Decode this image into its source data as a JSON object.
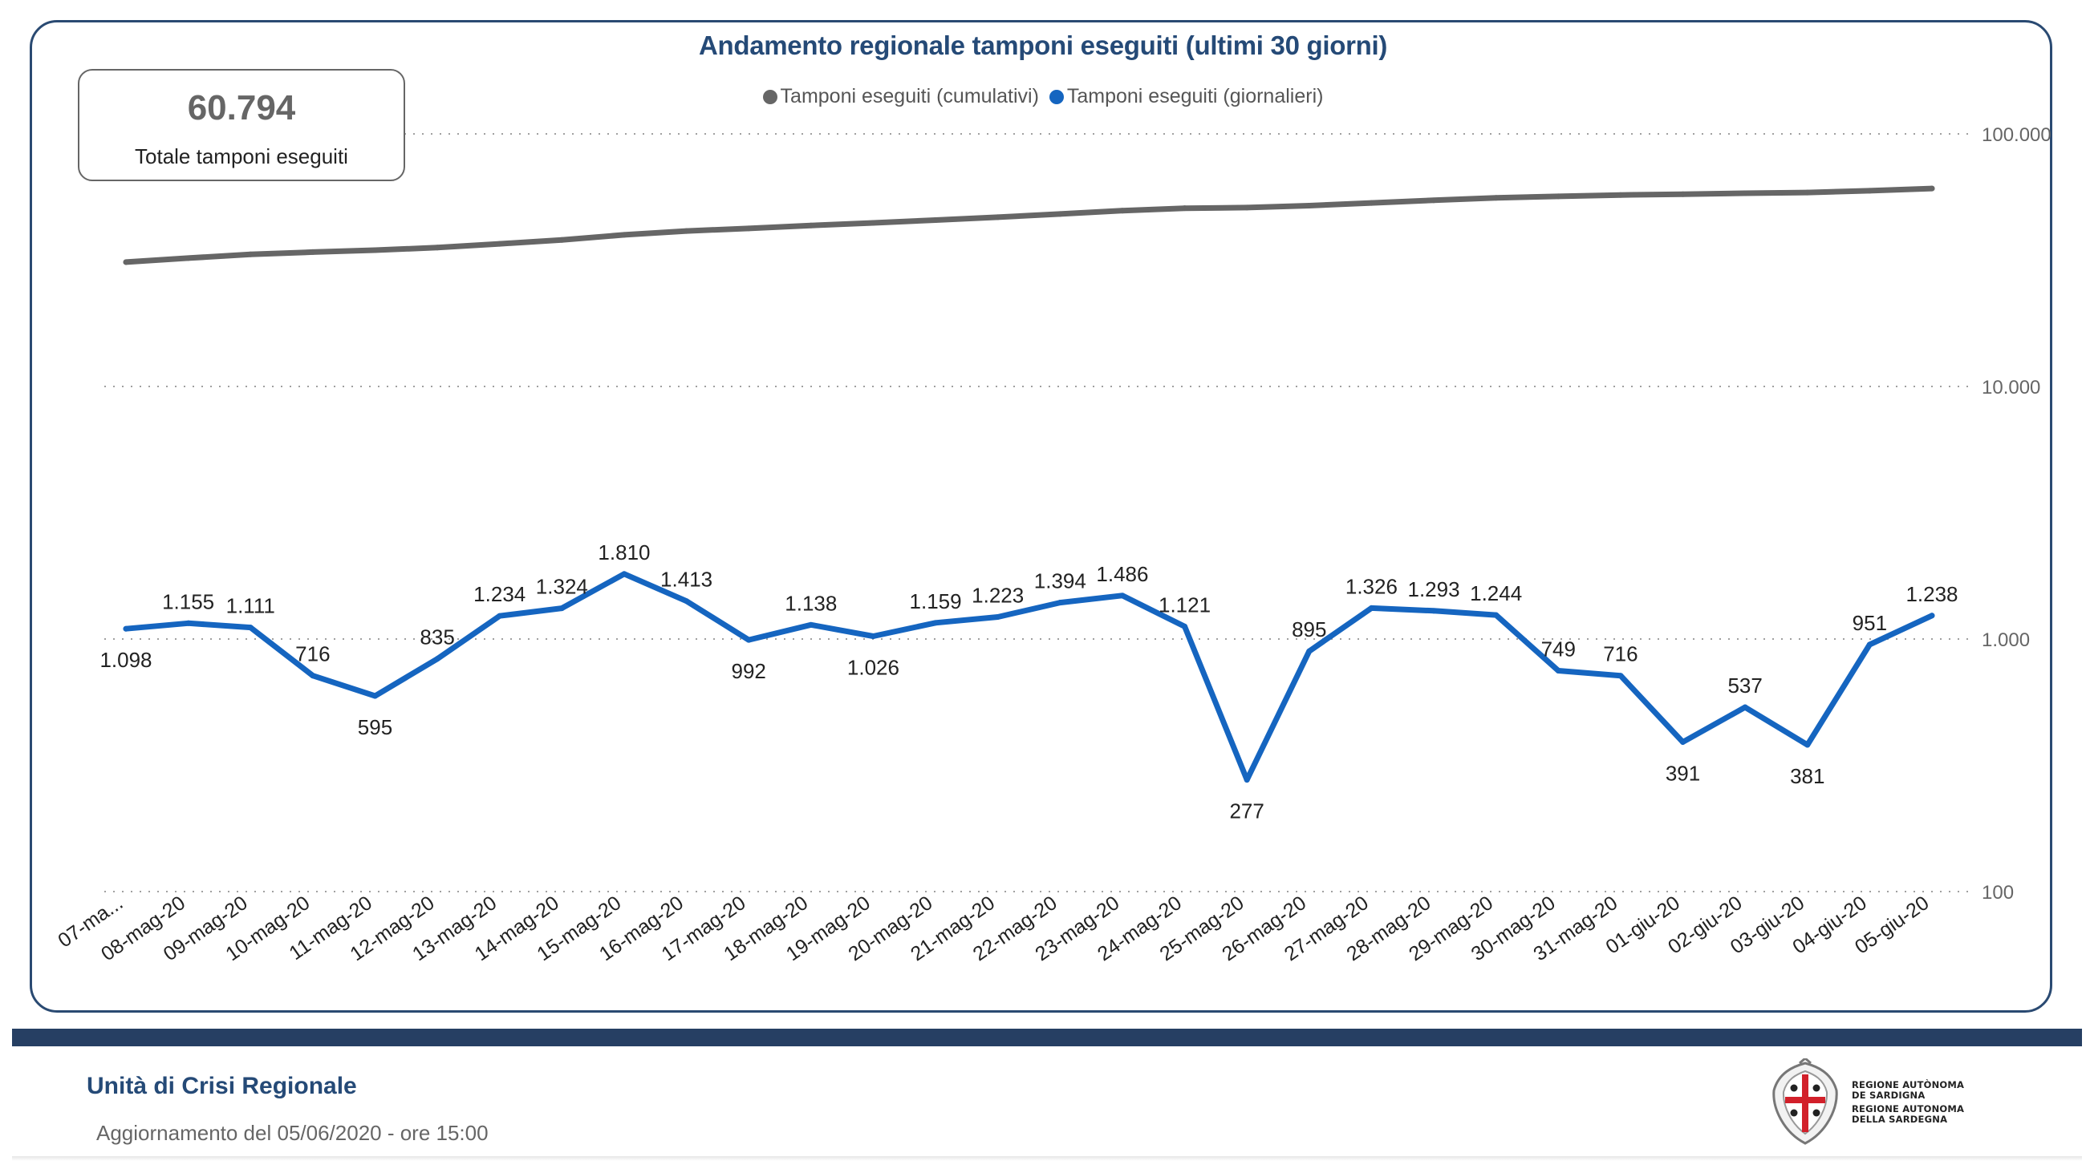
{
  "kpi": {
    "value": "60.794",
    "label": "Totale tamponi eseguiti"
  },
  "footer": {
    "title": "Unità di Crisi Regionale",
    "updated": "Aggiornamento del 05/06/2020 - ore 15:00",
    "logo_text": [
      "REGIONE AUTÒNOMA",
      "DE SARDIGNA",
      "REGIONE AUTONOMA",
      "DELLA SARDEGNA"
    ]
  },
  "colors": {
    "cumulative": "#666666",
    "daily": "#1565c0",
    "title": "#254a77",
    "border": "#2a4a72",
    "footer_bar": "#263f63",
    "flag_red": "#d2202a"
  },
  "chart_data": {
    "type": "line",
    "title": "Andamento regionale tamponi eseguiti (ultimi 30 giorni)",
    "xlabel": "",
    "ylabel": "",
    "yscale": "log",
    "ylim": [
      100,
      100000
    ],
    "yticks": [
      100,
      1000,
      10000,
      100000
    ],
    "ytick_labels": [
      "100",
      "1.000",
      "10.000",
      "100.000"
    ],
    "grid": true,
    "legend_position": "top-center",
    "categories": [
      "07-ma...",
      "08-mag-20",
      "09-mag-20",
      "10-mag-20",
      "11-mag-20",
      "12-mag-20",
      "13-mag-20",
      "14-mag-20",
      "15-mag-20",
      "16-mag-20",
      "17-mag-20",
      "18-mag-20",
      "19-mag-20",
      "20-mag-20",
      "21-mag-20",
      "22-mag-20",
      "23-mag-20",
      "24-mag-20",
      "25-mag-20",
      "26-mag-20",
      "27-mag-20",
      "28-mag-20",
      "29-mag-20",
      "30-mag-20",
      "31-mag-20",
      "01-giu-20",
      "02-giu-20",
      "03-giu-20",
      "04-giu-20",
      "05-giu-20"
    ],
    "series": [
      {
        "name": "Tamponi eseguiti (cumulativi)",
        "color": "#666666",
        "values": [
          31064,
          32219,
          33330,
          34046,
          34641,
          35476,
          36710,
          38034,
          39844,
          41257,
          42249,
          43387,
          44413,
          45572,
          46795,
          48189,
          49675,
          50796,
          51073,
          51968,
          53294,
          54587,
          55831,
          56580,
          57296,
          57687,
          58224,
          58605,
          59556,
          60794
        ]
      },
      {
        "name": "Tamponi eseguiti (giornalieri)",
        "color": "#1565c0",
        "values": [
          1098,
          1155,
          1111,
          716,
          595,
          835,
          1234,
          1324,
          1810,
          1413,
          992,
          1138,
          1026,
          1159,
          1223,
          1394,
          1486,
          1121,
          277,
          895,
          1326,
          1293,
          1244,
          749,
          716,
          391,
          537,
          381,
          951,
          1238
        ],
        "labels": [
          "1.098",
          "1.155",
          "1.111",
          "716",
          "595",
          "835",
          "1.234",
          "1.324",
          "1.810",
          "1.413",
          "992",
          "1.138",
          "1.026",
          "1.159",
          "1.223",
          "1.394",
          "1.486",
          "1.121",
          "277",
          "895",
          "1.326",
          "1.293",
          "1.244",
          "749",
          "716",
          "391",
          "537",
          "381",
          "951",
          "1.238"
        ],
        "label_side": [
          "below",
          "above",
          "above",
          "above",
          "below",
          "above",
          "above",
          "above",
          "above",
          "above",
          "below",
          "above",
          "below",
          "above",
          "above",
          "above",
          "above",
          "above",
          "below",
          "above",
          "above",
          "above",
          "above",
          "above",
          "above",
          "below",
          "above",
          "below",
          "above",
          "above"
        ]
      }
    ]
  }
}
